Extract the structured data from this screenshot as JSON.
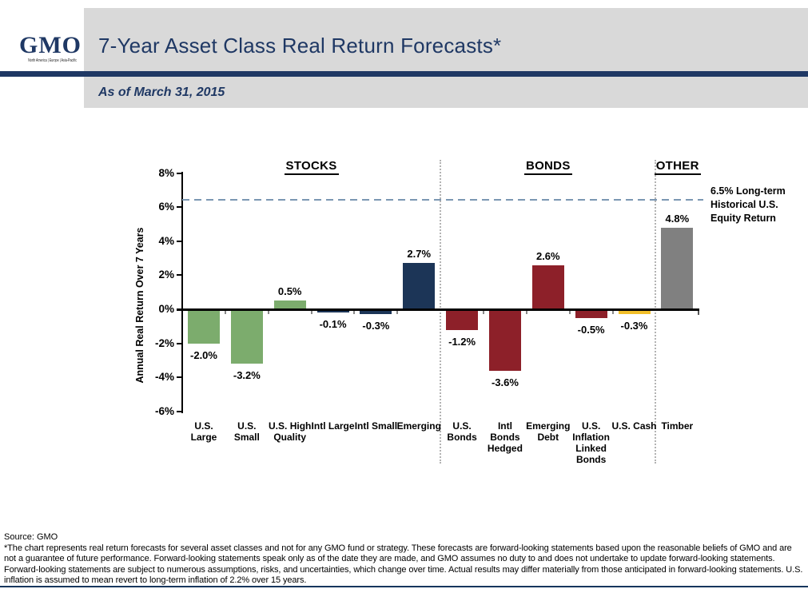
{
  "header": {
    "logo_text": "GMO",
    "logo_tagline": "North America  |  Europe  |  Asia-Pacific",
    "title": "7-Year Asset Class Real Return Forecasts*",
    "subtitle": "As of March 31, 2015"
  },
  "theme": {
    "navy": "#1f3864",
    "panel_gray": "#d9d9d9",
    "axis_black": "#000000"
  },
  "chart_data": {
    "type": "bar",
    "title": "7-Year Asset Class Real Return Forecasts*",
    "ylabel": "Annual Real Return Over 7 Years",
    "ylim": [
      -6,
      8
    ],
    "ytick_values": [
      8,
      6,
      4,
      2,
      0,
      -2,
      -4,
      -6
    ],
    "ytick_labels": [
      "8%",
      "6%",
      "4%",
      "2%",
      "0%",
      "-2%",
      "-4%",
      "-6%"
    ],
    "grid": false,
    "legend": "none",
    "sections": [
      {
        "label": "STOCKS",
        "bar_count": 6
      },
      {
        "label": "BONDS",
        "bar_count": 5
      },
      {
        "label": "OTHER",
        "bar_count": 1
      }
    ],
    "bars": [
      {
        "category": "U.S. Large",
        "section": "STOCKS",
        "value": -2.0,
        "label": "-2.0%",
        "color": "#7cac6d"
      },
      {
        "category": "U.S. Small",
        "section": "STOCKS",
        "value": -3.2,
        "label": "-3.2%",
        "color": "#7cac6d"
      },
      {
        "category": "U.S. High Quality",
        "section": "STOCKS",
        "value": 0.5,
        "label": "0.5%",
        "color": "#7cac6d"
      },
      {
        "category": "Intl Large",
        "section": "STOCKS",
        "value": -0.1,
        "label": "-0.1%",
        "color": "#1c3557"
      },
      {
        "category": "Intl Small",
        "section": "STOCKS",
        "value": -0.3,
        "label": "-0.3%",
        "color": "#1c3557"
      },
      {
        "category": "Emerging",
        "section": "STOCKS",
        "value": 2.7,
        "label": "2.7%",
        "color": "#1c3557"
      },
      {
        "category": "U.S. Bonds",
        "section": "BONDS",
        "value": -1.2,
        "label": "-1.2%",
        "color": "#8d2029"
      },
      {
        "category": "Intl Bonds Hedged",
        "section": "BONDS",
        "value": -3.6,
        "label": "-3.6%",
        "color": "#8d2029"
      },
      {
        "category": "Emerging Debt",
        "section": "BONDS",
        "value": 2.6,
        "label": "2.6%",
        "color": "#8d2029"
      },
      {
        "category": "U.S. Inflation Linked Bonds",
        "section": "BONDS",
        "value": -0.5,
        "label": "-0.5%",
        "color": "#8d2029"
      },
      {
        "category": "U.S. Cash",
        "section": "BONDS",
        "value": -0.3,
        "label": "-0.3%",
        "color": "#f2bf2a"
      },
      {
        "category": "Timber",
        "section": "OTHER",
        "value": 4.8,
        "label": "4.8%",
        "color": "#808080"
      }
    ],
    "reference_line": {
      "value": 6.5,
      "label": "6.5% Long-term Historical U.S. Equity Return",
      "color": "#7b97b3",
      "style": "dashed"
    }
  },
  "footer": {
    "source": "Source: GMO",
    "disclaimer": "*The chart represents real return forecasts for several asset classes and not for any GMO fund or strategy.  These forecasts are forward-looking statements based upon the reasonable beliefs of GMO and are not a guarantee of future performance.  Forward-looking statements speak only as of the date they are made, and GMO assumes no duty to and does not undertake to update forward-looking statements.  Forward-looking statements are subject to numerous assumptions, risks, and uncertainties, which change over time.  Actual results may differ materially from those anticipated in forward-looking statements. U.S. inflation is assumed to mean revert to long-term inflation of 2.2% over 15 years."
  }
}
